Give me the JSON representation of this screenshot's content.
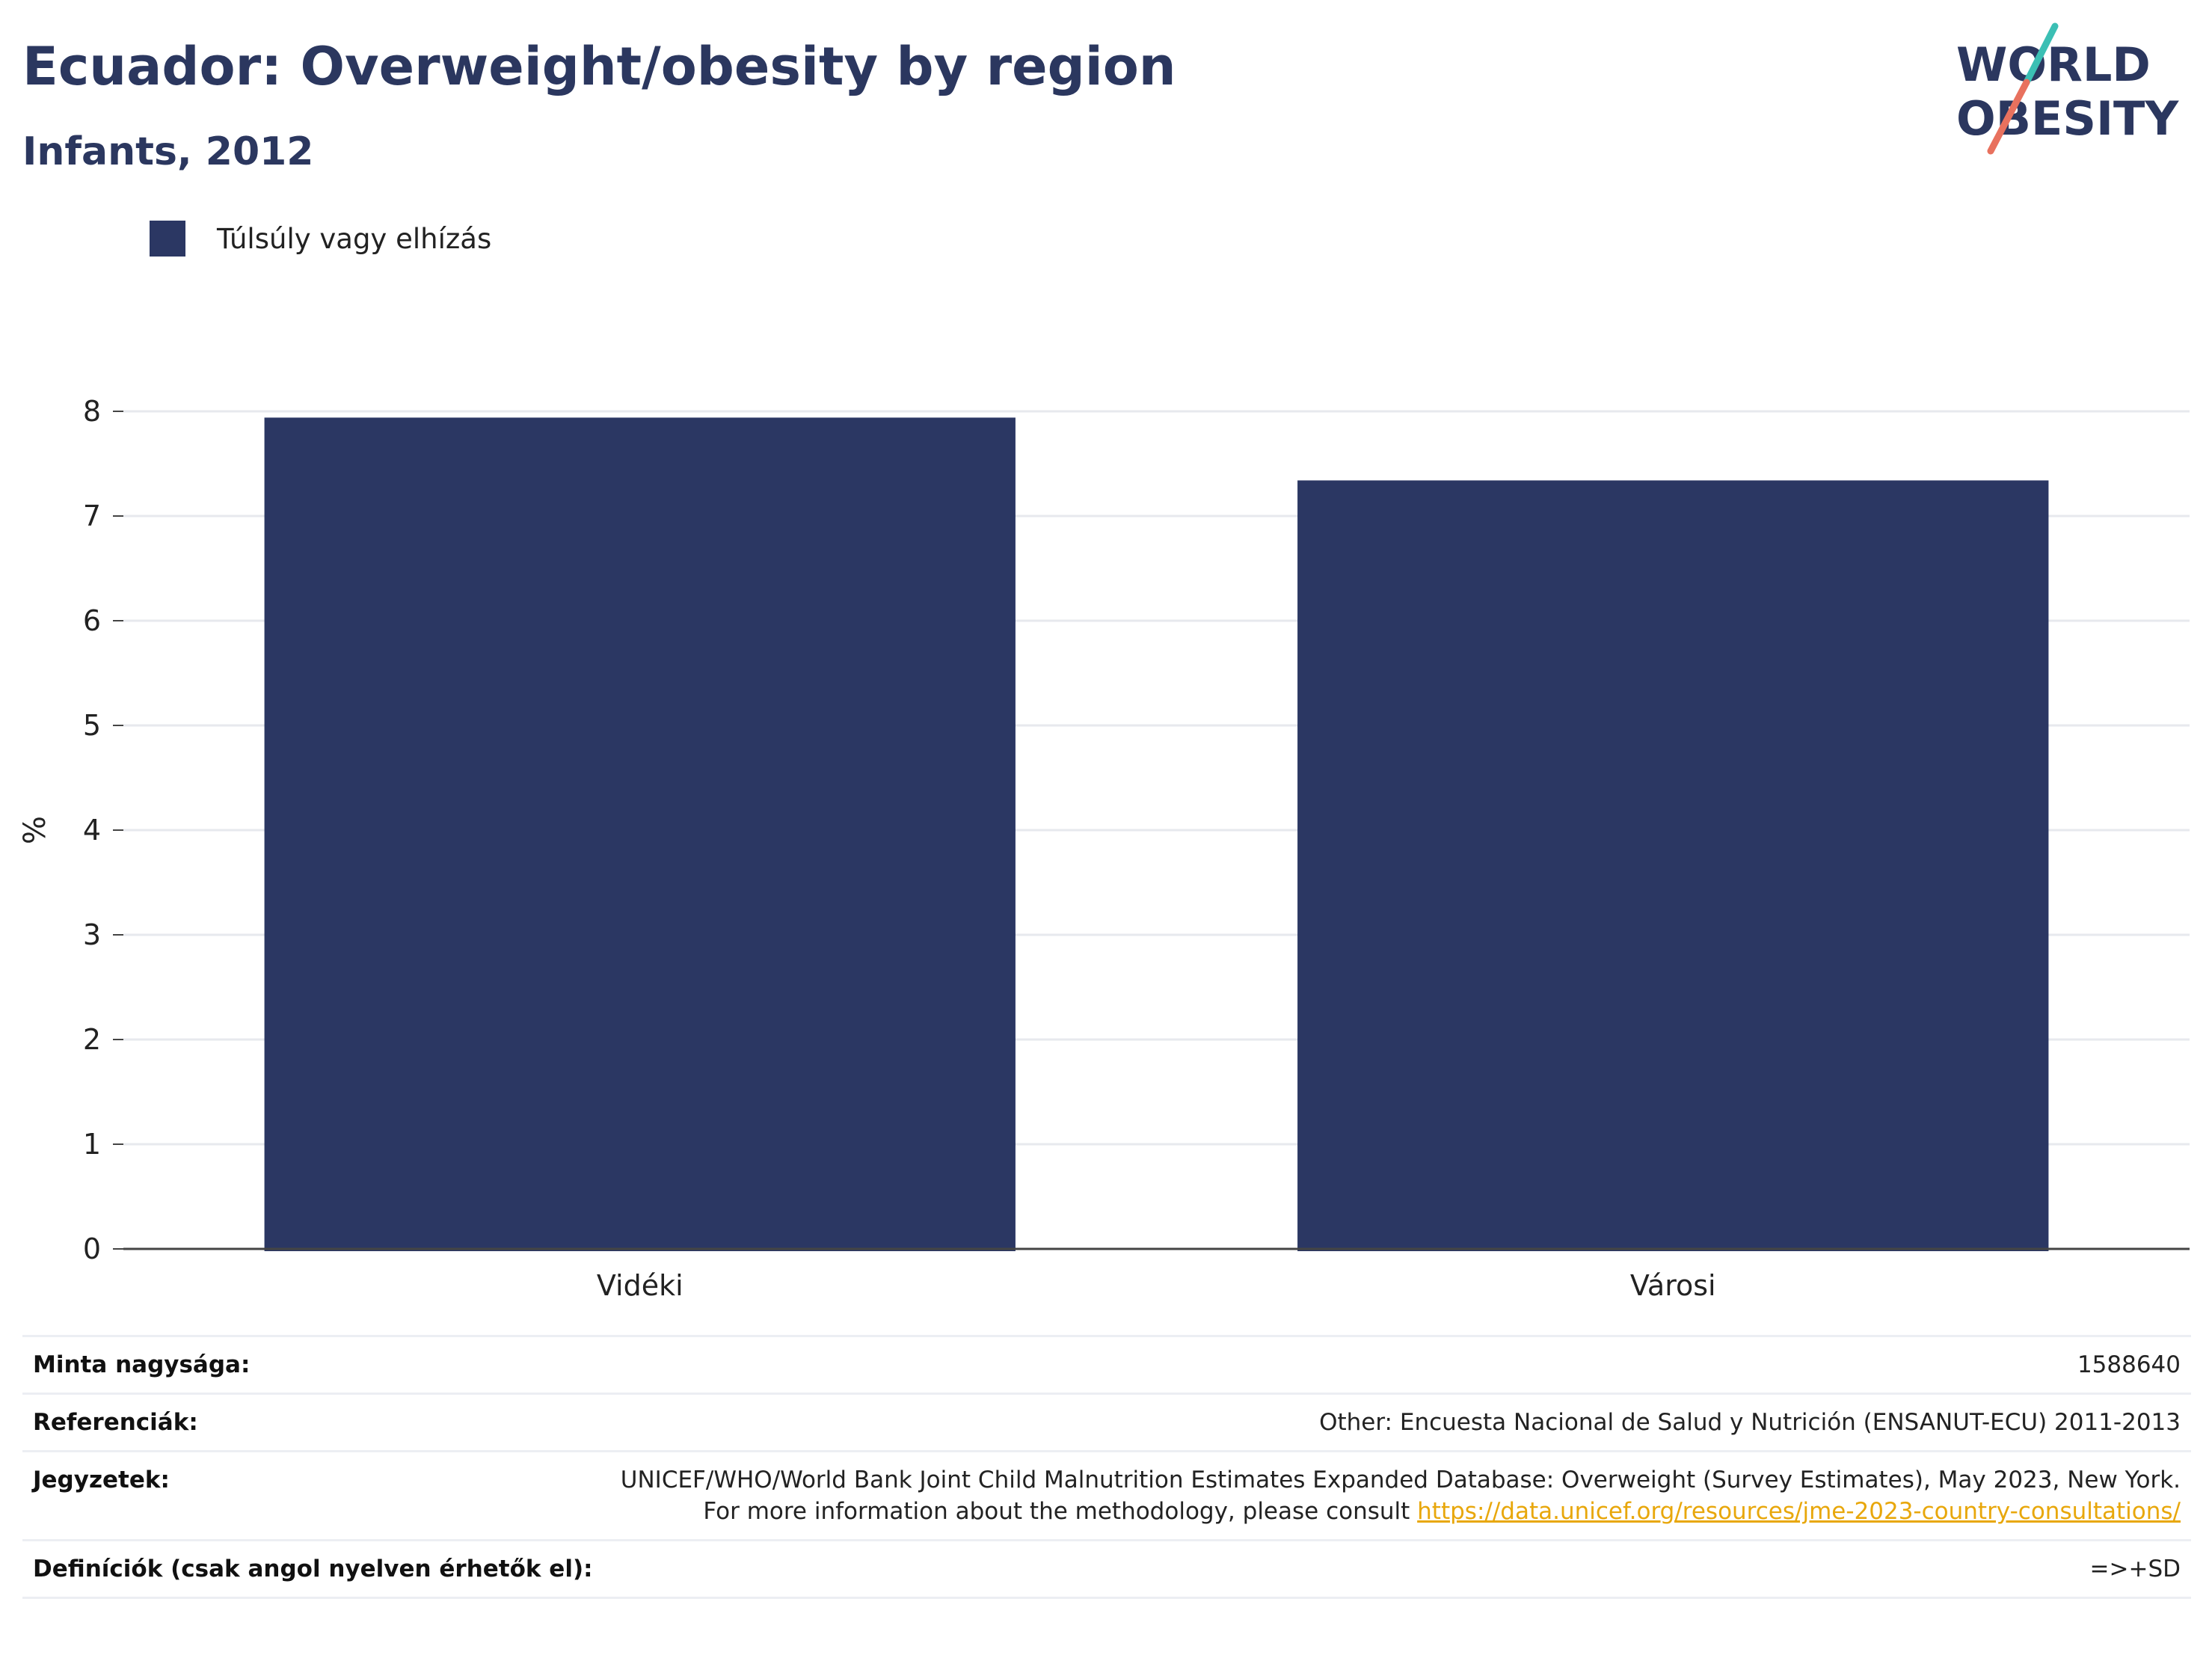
{
  "title": "Ecuador: Overweight/obesity by region",
  "subtitle": "Infants, 2012",
  "logo": {
    "line1": "WORLD",
    "line2": "OBESITY",
    "colors": {
      "text": "#2b375f",
      "slash_top": "#3bbfb4",
      "slash_bottom": "#e8715e"
    }
  },
  "colors": {
    "bar": "#2b3763",
    "title": "#2b375f",
    "grid": "#e7e9ee",
    "axis": "#444444",
    "link": "#e8a70b"
  },
  "chart_data": {
    "type": "bar",
    "categories": [
      "Vidéki",
      "Városi"
    ],
    "series": [
      {
        "name": "Túlsúly vagy elhízás",
        "values": [
          7.94,
          7.34
        ]
      }
    ],
    "ylabel": "%",
    "xlabel": "",
    "ylim": [
      0,
      8
    ],
    "yticks": [
      0,
      1,
      2,
      3,
      4,
      5,
      6,
      7,
      8
    ],
    "grid": true,
    "legend": "top-left"
  },
  "info": {
    "sample_size": {
      "label": "Minta nagysága:",
      "value": "1588640"
    },
    "references": {
      "label": "Referenciák:",
      "value": "Other: Encuesta Nacional de Salud y Nutrición (ENSANUT-ECU) 2011-2013"
    },
    "notes": {
      "label": "Jegyzetek:",
      "text": "UNICEF/WHO/World Bank Joint Child Malnutrition Estimates Expanded Database: Overweight (Survey Estimates), May 2023, New York. For more information about the methodology, please consult ",
      "link": "https://data.unicef.org/resources/jme-2023-country-consultations/"
    },
    "definitions": {
      "label": "Definíciók (csak angol nyelven érhetők el):",
      "value": "=>+SD"
    }
  }
}
